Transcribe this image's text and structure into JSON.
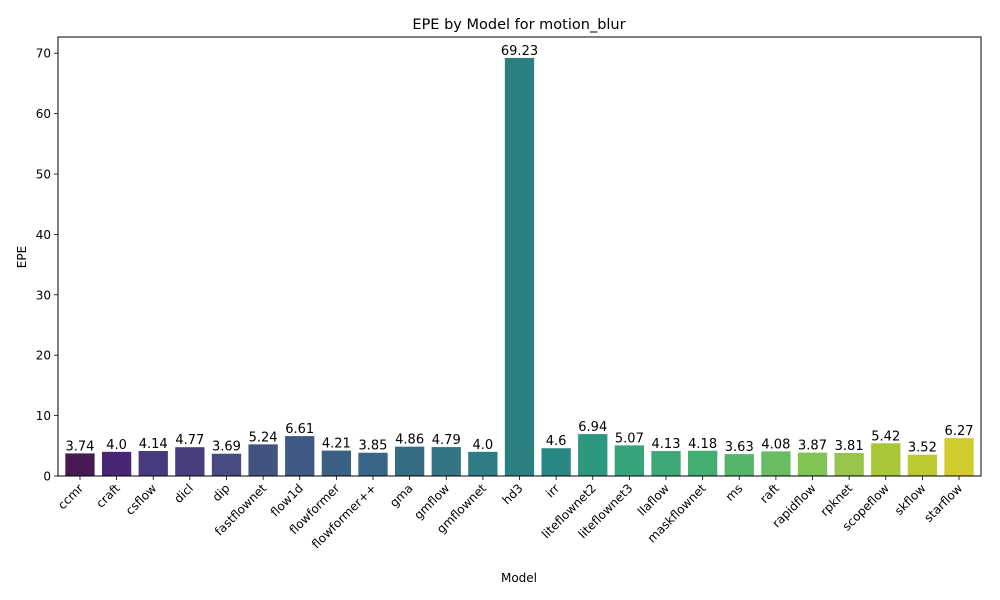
{
  "chart_data": {
    "type": "bar",
    "title": "EPE by Model for motion_blur",
    "xlabel": "Model",
    "ylabel": "EPE",
    "ylim": [
      0,
      72.69
    ],
    "yticks": [
      0,
      10,
      20,
      30,
      40,
      50,
      60,
      70
    ],
    "grid": false,
    "categories": [
      "ccmr",
      "craft",
      "csflow",
      "dicl",
      "dip",
      "fastflownet",
      "flow1d",
      "flowformer",
      "flowformer++",
      "gma",
      "gmflow",
      "gmflownet",
      "hd3",
      "irr",
      "liteflownet2",
      "liteflownet3",
      "llaflow",
      "maskflownet",
      "ms",
      "raft",
      "rapidflow",
      "rpknet",
      "scopeflow",
      "skflow",
      "starflow"
    ],
    "values": [
      3.74,
      4.0,
      4.14,
      4.77,
      3.69,
      5.24,
      6.61,
      4.21,
      3.85,
      4.86,
      4.79,
      4.0,
      69.23,
      4.6,
      6.94,
      5.07,
      4.13,
      4.18,
      3.63,
      4.08,
      3.87,
      3.81,
      5.42,
      3.52,
      6.27
    ],
    "labels": [
      "3.74",
      "4.0",
      "4.14",
      "4.77",
      "3.69",
      "5.24",
      "6.61",
      "4.21",
      "3.85",
      "4.86",
      "4.79",
      "4.0",
      "69.23",
      "4.6",
      "6.94",
      "5.07",
      "4.13",
      "4.18",
      "3.63",
      "4.08",
      "3.87",
      "3.81",
      "5.42",
      "3.52",
      "6.27"
    ],
    "colors": [
      "#471a54",
      "#482576",
      "#483a7e",
      "#473f7b",
      "#474b81",
      "#435380",
      "#3f5a85",
      "#3a6184",
      "#396586",
      "#366c83",
      "#327585",
      "#2f7b86",
      "#2b7f7f",
      "#2a8884",
      "#2c9880",
      "#37a37b",
      "#3ea778",
      "#43ae72",
      "#55b66b",
      "#68bd63",
      "#80c455",
      "#97c54a",
      "#a9c638",
      "#bdc930",
      "#d1cb2d"
    ]
  }
}
